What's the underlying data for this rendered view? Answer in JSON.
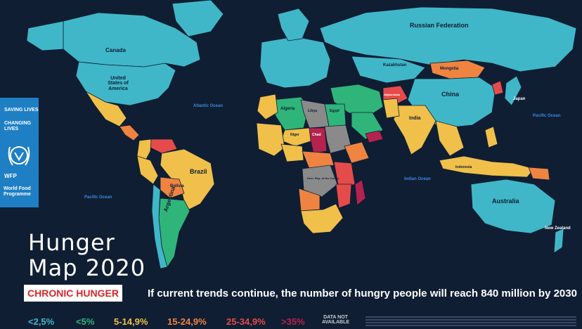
{
  "colors": {
    "background": "#0f1e33",
    "lt2_5": "#40b7c9",
    "lt5": "#2fb57a",
    "c5_15": "#f0c04a",
    "c15_25": "#ef8441",
    "c25_35": "#e64b4b",
    "gt35": "#b5224e",
    "no_data": "#8a8a8a",
    "brand_blue": "#1e7fc4",
    "alert_red": "#d7262b"
  },
  "branding": {
    "tagline_1": "SAVING LIVES",
    "tagline_2": "CHANGING LIVES",
    "org_icon": "wfp-wheat-wreath-icon",
    "org_short": "WFP",
    "org_name": "World Food Programme"
  },
  "title": {
    "line1": "Hunger",
    "line2": "Map 2020"
  },
  "badge": "CHRONIC HUNGER",
  "subtitle": "If current trends continue, the number of hungry people will reach 840 million by 2030",
  "legend": [
    {
      "label": "<2,5%",
      "color": "#40b7c9"
    },
    {
      "label": "<5%",
      "color": "#2fb57a"
    },
    {
      "label": "5-14,9%",
      "color": "#f0c04a"
    },
    {
      "label": "15-24,9%",
      "color": "#ef8441"
    },
    {
      "label": "25-34,9%",
      "color": "#e64b4b"
    },
    {
      "label": ">35%",
      "color": "#b5224e"
    }
  ],
  "legend_na_1": "DATA NOT",
  "legend_na_2": "AVAILABLE",
  "oceans": {
    "atlantic": "Atlantic Ocean",
    "pacific_west": "Pacific Ocean",
    "pacific_east": "Pacific Ocean",
    "indian": "Indian Ocean"
  },
  "countries": {
    "russia": "Russian Federation",
    "canada": "Canada",
    "usa": "United States of America",
    "china": "China",
    "brazil": "Brazil",
    "argentina": "Argentina",
    "australia": "Australia",
    "mongolia": "Mongolia",
    "kazakhstan": "Kazakhstan",
    "india": "India",
    "algeria": "Algeria",
    "libya": "Libya",
    "egypt": "Egypt",
    "chad": "Chad",
    "niger": "Niger",
    "bolivia": "Bolivia",
    "japan": "Japan",
    "indonesia": "Indonesia",
    "new_zealand": "New Zealand",
    "afghanistan": "Afghanistan",
    "dr_congo": "Dem. Rep. of the Congo"
  }
}
